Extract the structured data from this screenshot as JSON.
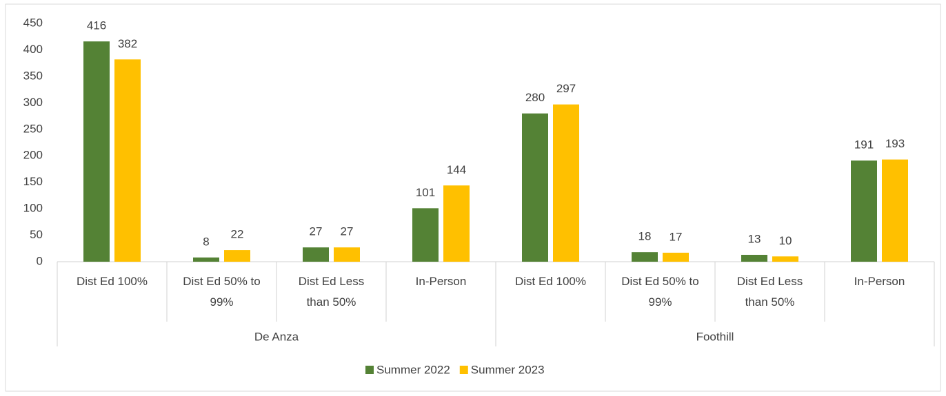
{
  "chart_data": {
    "type": "bar",
    "groups": [
      "De Anza",
      "Foothill"
    ],
    "categories": [
      "Dist Ed 100%",
      "Dist Ed 50% to 99%",
      "Dist Ed Less than 50%",
      "In-Person",
      "Dist Ed 100%",
      "Dist Ed 50% to 99%",
      "Dist Ed Less than 50%",
      "In-Person"
    ],
    "series": [
      {
        "name": "Summer 2022",
        "color": "#548235",
        "values": [
          416,
          8,
          27,
          101,
          280,
          18,
          13,
          191
        ]
      },
      {
        "name": "Summer 2023",
        "color": "#ffc000",
        "values": [
          382,
          22,
          27,
          144,
          297,
          17,
          10,
          193
        ]
      }
    ],
    "ylim": [
      0,
      450
    ],
    "yticks": [
      0,
      50,
      100,
      150,
      200,
      250,
      300,
      350,
      400,
      450
    ],
    "grid": false,
    "legend": "bottom"
  }
}
